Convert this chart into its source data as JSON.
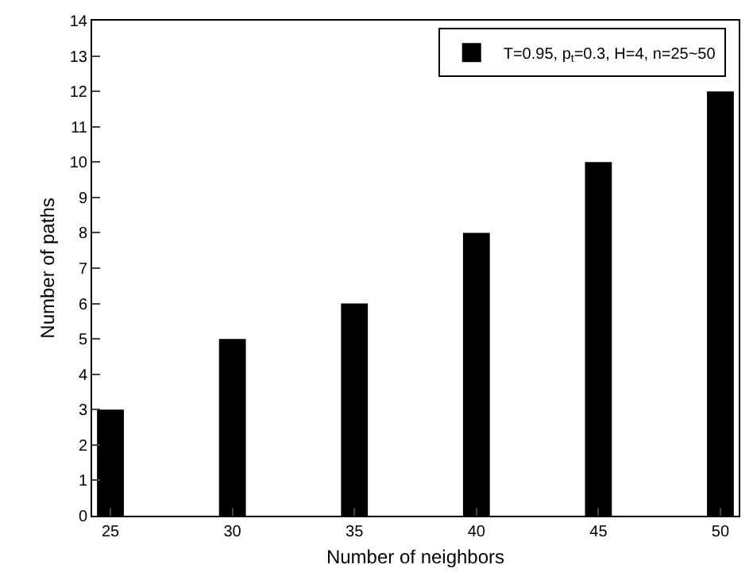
{
  "chart_data": {
    "type": "bar",
    "xlabel": "Number of neighbors",
    "ylabel": "Number of paths",
    "categories": [
      "25",
      "30",
      "35",
      "40",
      "45",
      "50"
    ],
    "series": [
      {
        "name": "T=0.95, p$_{t}$=0.3, H=4, n=25~50",
        "color": "#000000",
        "values": [
          3,
          5,
          6,
          8,
          10,
          12
        ]
      }
    ],
    "ylim": [
      0,
      14
    ],
    "yticks": [
      0,
      1,
      2,
      3,
      4,
      5,
      6,
      7,
      8,
      9,
      10,
      11,
      12,
      13,
      14
    ],
    "legend": "top right"
  }
}
